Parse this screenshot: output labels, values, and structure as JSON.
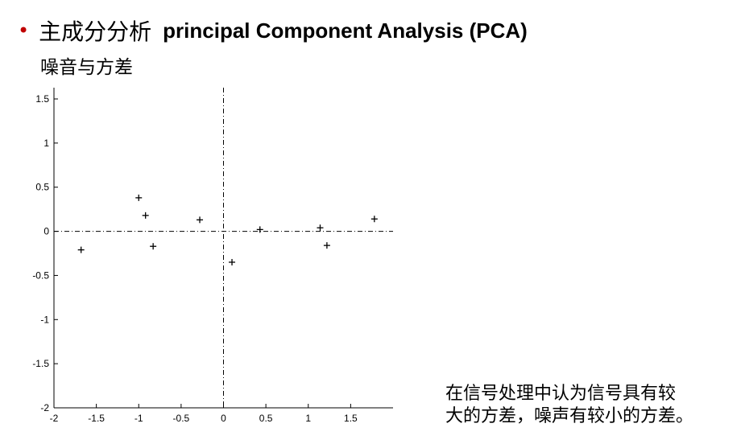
{
  "slide": {
    "bullet": "•",
    "title_cn": "主成分分析",
    "title_en": "principal Component Analysis (PCA)",
    "subtitle": "噪音与方差",
    "note_line1": "在信号处理中认为信号具有较",
    "note_line2": "大的方差，噪声有较小的方差。",
    "accent_color": "#c00000"
  },
  "chart_data": {
    "type": "scatter",
    "marker": "+",
    "xlim": [
      -2,
      2
    ],
    "ylim": [
      -2,
      1.5
    ],
    "xticks": [
      -2,
      -1.5,
      -1,
      -0.5,
      0,
      0.5,
      1,
      1.5
    ],
    "yticks": [
      1.5,
      1,
      0.5,
      0,
      -0.5,
      -1,
      -1.5,
      -2
    ],
    "xtick_labels": [
      "-2",
      "-1.5",
      "-1",
      "-0.5",
      "0",
      "0.5",
      "1",
      "1.5"
    ],
    "ytick_labels": [
      "1.5",
      "1",
      "0.5",
      "0",
      "-0.5",
      "-1",
      "-1.5",
      "-2"
    ],
    "reference_lines": "dash-dot lines at x=0 and y=0",
    "points": [
      {
        "x": -1.68,
        "y": -0.21
      },
      {
        "x": -1.0,
        "y": 0.38
      },
      {
        "x": -0.92,
        "y": 0.18
      },
      {
        "x": -0.83,
        "y": -0.17
      },
      {
        "x": -0.28,
        "y": 0.13
      },
      {
        "x": 0.1,
        "y": -0.35
      },
      {
        "x": 0.43,
        "y": 0.02
      },
      {
        "x": 1.14,
        "y": 0.04
      },
      {
        "x": 1.22,
        "y": -0.16
      },
      {
        "x": 1.78,
        "y": 0.14
      }
    ]
  }
}
